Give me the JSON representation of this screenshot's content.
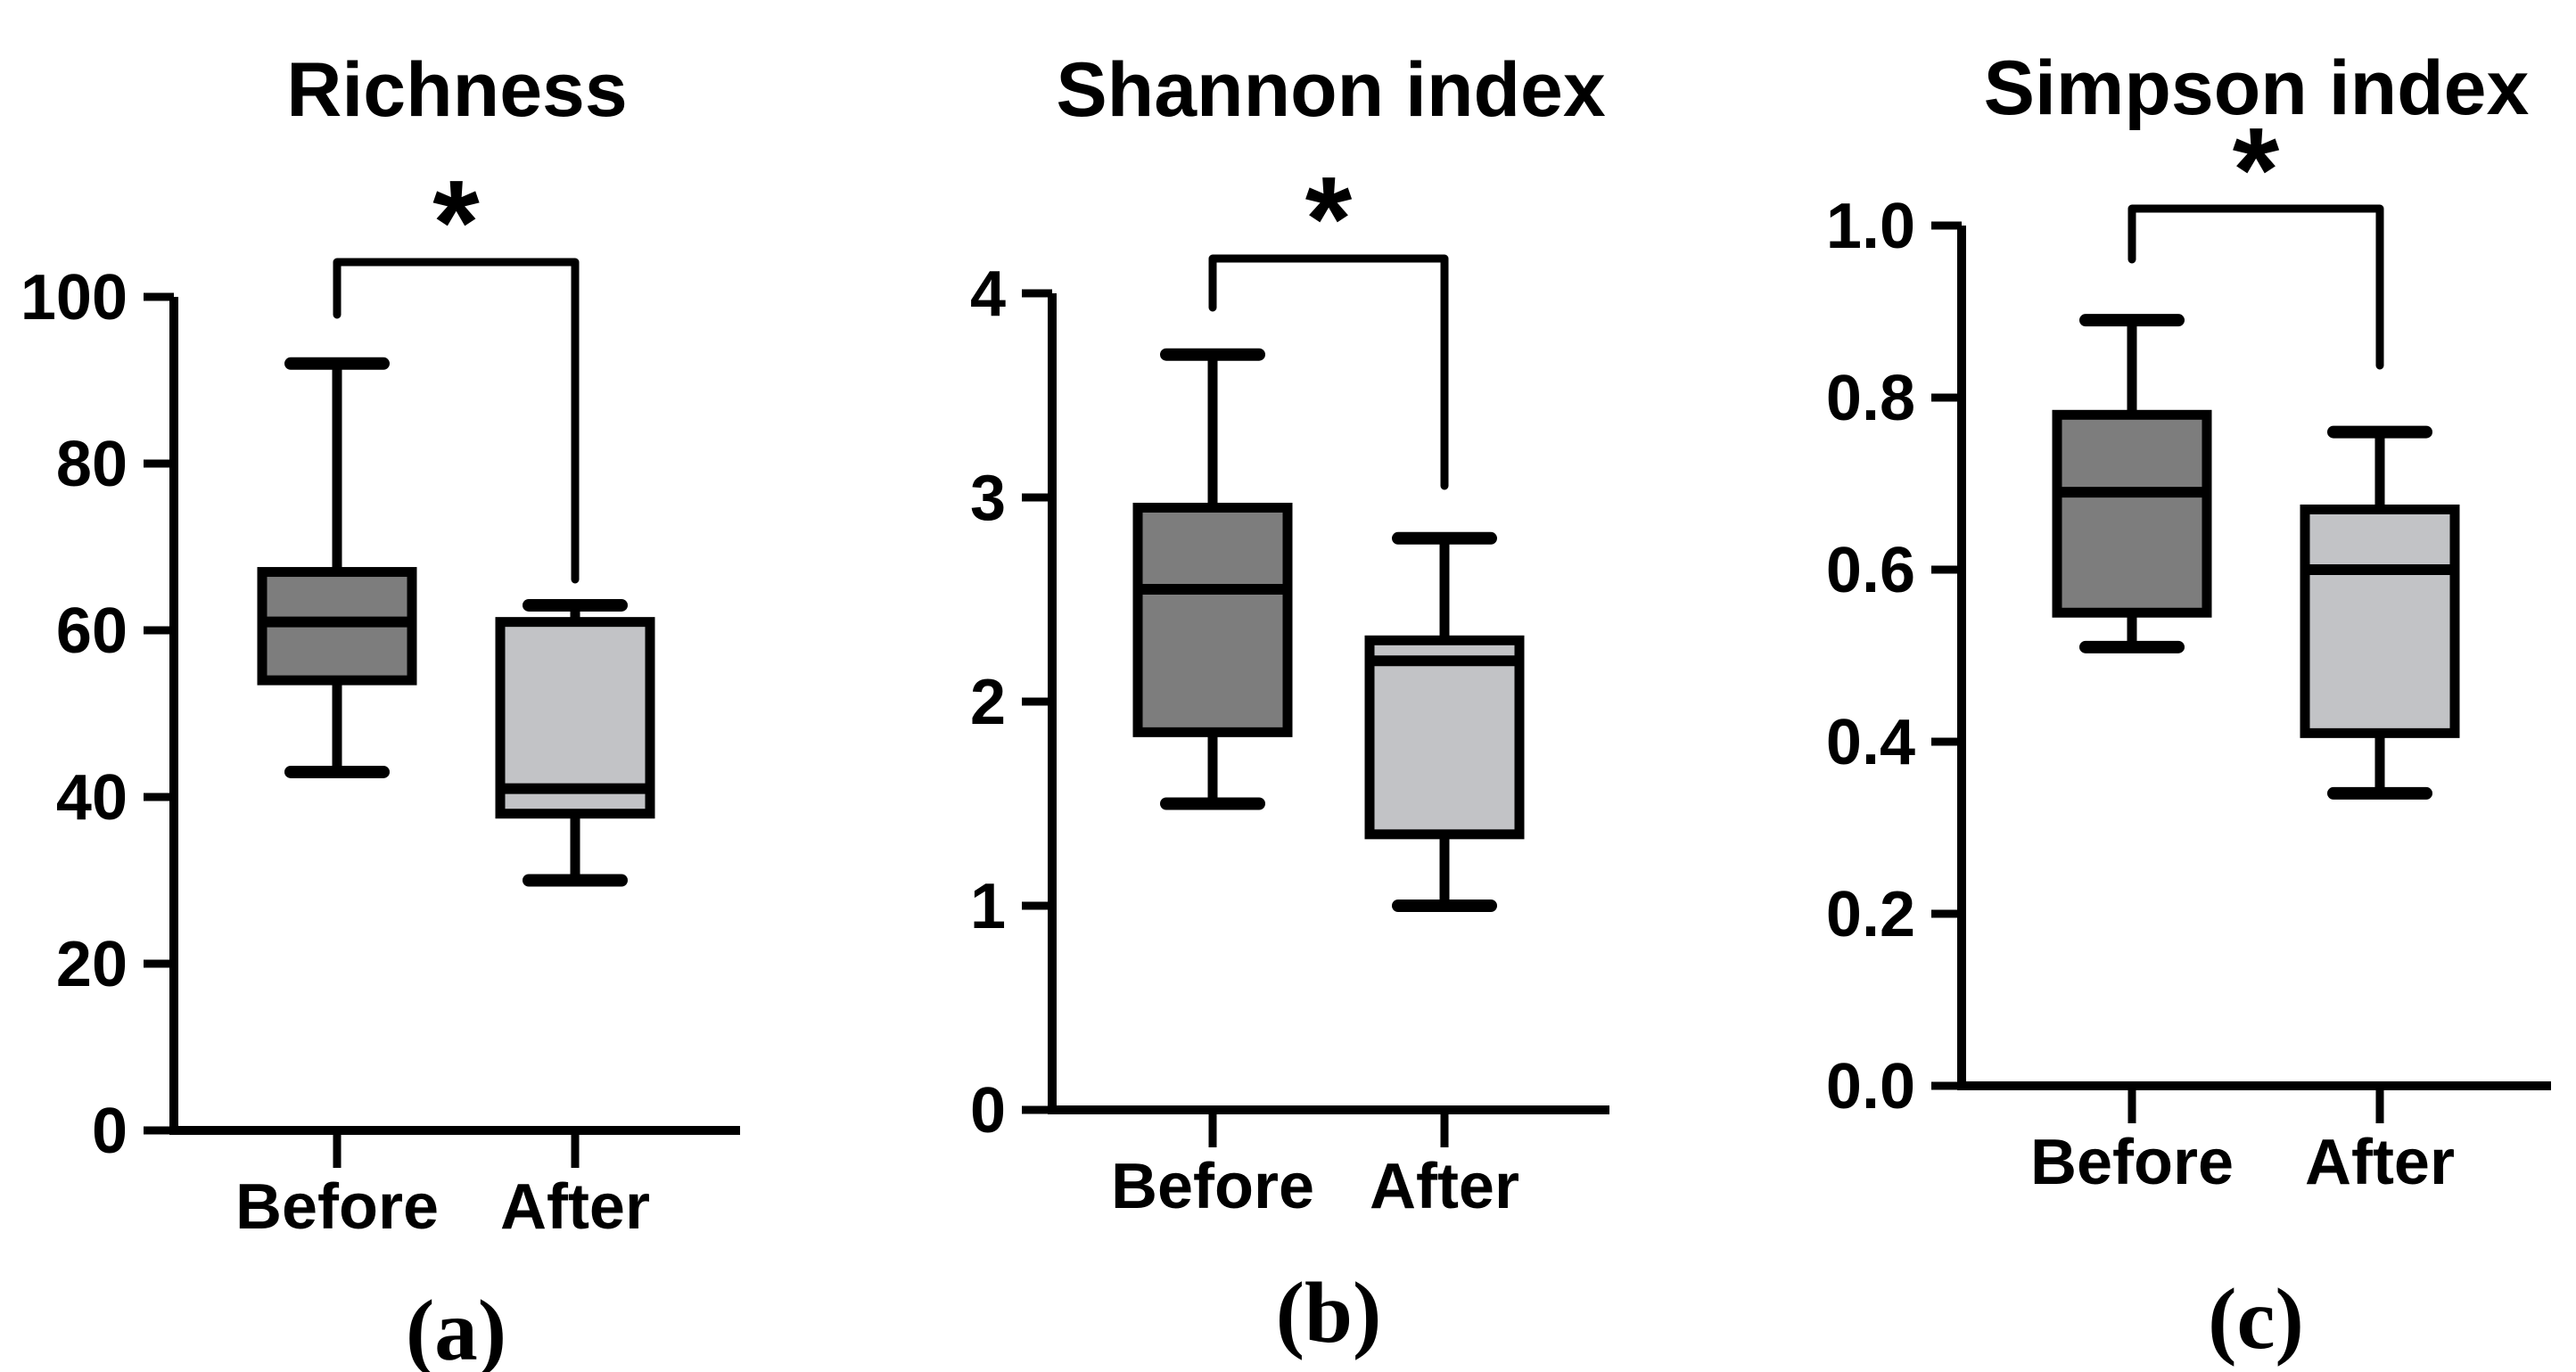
{
  "figure": {
    "background": "#ffffff",
    "panel_labels": [
      "(a)",
      "(b)",
      "(c)"
    ]
  },
  "chart_data": [
    {
      "type": "box",
      "panel_label": "(a)",
      "title": "Richness",
      "significance": "*",
      "categories": [
        "Before",
        "After"
      ],
      "ylim": [
        0,
        100
      ],
      "yticks": [
        0,
        20,
        40,
        60,
        80,
        100
      ],
      "ytick_labels": [
        "0",
        "20",
        "40",
        "60",
        "80",
        "100"
      ],
      "grid": false,
      "legend": "none",
      "series": [
        {
          "name": "Before",
          "min": 43,
          "q1": 54,
          "median": 61,
          "q3": 67,
          "max": 92,
          "fill": "#7d7d7d"
        },
        {
          "name": "After",
          "min": 30,
          "q1": 38,
          "median": 41,
          "q3": 61,
          "max": 63,
          "fill": "#c2c3c6"
        }
      ]
    },
    {
      "type": "box",
      "panel_label": "(b)",
      "title": "Shannon index",
      "significance": "*",
      "categories": [
        "Before",
        "After"
      ],
      "ylim": [
        0,
        4
      ],
      "yticks": [
        0,
        1,
        2,
        3,
        4
      ],
      "ytick_labels": [
        "0",
        "1",
        "2",
        "3",
        "4"
      ],
      "grid": false,
      "legend": "none",
      "series": [
        {
          "name": "Before",
          "min": 1.5,
          "q1": 1.85,
          "median": 2.55,
          "q3": 2.95,
          "max": 3.7,
          "fill": "#7d7d7d"
        },
        {
          "name": "After",
          "min": 1.0,
          "q1": 1.35,
          "median": 2.2,
          "q3": 2.3,
          "max": 2.8,
          "fill": "#c2c3c6"
        }
      ]
    },
    {
      "type": "box",
      "panel_label": "(c)",
      "title": "Simpson index",
      "significance": "*",
      "categories": [
        "Before",
        "After"
      ],
      "ylim": [
        0.0,
        1.0
      ],
      "yticks": [
        0.0,
        0.2,
        0.4,
        0.6,
        0.8,
        1.0
      ],
      "ytick_labels": [
        "0.0",
        "0.2",
        "0.4",
        "0.6",
        "0.8",
        "1.0"
      ],
      "grid": false,
      "legend": "none",
      "series": [
        {
          "name": "Before",
          "min": 0.51,
          "q1": 0.55,
          "median": 0.69,
          "q3": 0.78,
          "max": 0.89,
          "fill": "#7d7d7d"
        },
        {
          "name": "After",
          "min": 0.34,
          "q1": 0.41,
          "median": 0.6,
          "q3": 0.67,
          "max": 0.76,
          "fill": "#c2c3c6"
        }
      ]
    }
  ],
  "colors": {
    "stroke": "#000000",
    "before_fill": "#7d7d7d",
    "after_fill": "#c2c3c6",
    "background": "#ffffff"
  }
}
